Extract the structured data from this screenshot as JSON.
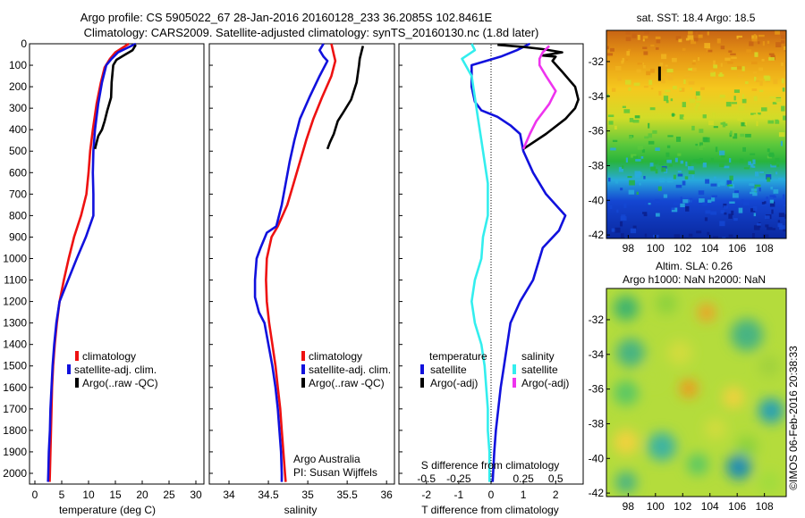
{
  "header": {
    "line1": "Argo profile: CS 5905022_67 28-Jan-2016 20160128_233 36.2085S 102.8461E",
    "line2": "Climatology: CARS2009. Satellite-adjusted climatology: synTS_20160130.nc (1.8d later)"
  },
  "footer_note": "©IMOS 06-Feb-2016 20:38:33",
  "colors": {
    "red": "#ee1111",
    "blue": "#1111dd",
    "black": "#000000",
    "cyan": "#33eeee",
    "magenta": "#ee33ee"
  },
  "chart_data": [
    {
      "id": "temperature",
      "type": "line",
      "xlabel": "temperature (deg C)",
      "ylabel": "",
      "xlim": [
        -1,
        31.5
      ],
      "ylim": [
        2050,
        0
      ],
      "xticks": [
        "0",
        "5",
        "10",
        "15",
        "20",
        "25",
        "30"
      ],
      "yticks": [
        "0",
        "100",
        "200",
        "300",
        "400",
        "500",
        "600",
        "700",
        "800",
        "900",
        "1000",
        "1100",
        "1200",
        "1300",
        "1400",
        "1500",
        "1600",
        "1700",
        "1800",
        "1900",
        "2000"
      ],
      "legend": [
        "climatology",
        "satellite-adj. clim.",
        "Argo(..raw -QC)"
      ],
      "series": [
        {
          "name": "climatology",
          "color": "red",
          "points": [
            [
              17.5,
              0
            ],
            [
              15,
              40
            ],
            [
              14,
              70
            ],
            [
              13,
              110
            ],
            [
              12.3,
              180
            ],
            [
              11.5,
              280
            ],
            [
              10.8,
              400
            ],
            [
              10.3,
              500
            ],
            [
              10,
              600
            ],
            [
              9.6,
              700
            ],
            [
              8.6,
              800
            ],
            [
              7.3,
              900
            ],
            [
              6.3,
              1000
            ],
            [
              5.4,
              1100
            ],
            [
              4.6,
              1200
            ],
            [
              4.1,
              1300
            ],
            [
              3.7,
              1400
            ],
            [
              3.4,
              1500
            ],
            [
              3.2,
              1600
            ],
            [
              3.1,
              1700
            ],
            [
              3,
              1800
            ],
            [
              2.9,
              1900
            ],
            [
              2.8,
              2000
            ],
            [
              2.75,
              2040
            ]
          ]
        },
        {
          "name": "satellite-adj. clim.",
          "color": "blue",
          "points": [
            [
              18.8,
              0
            ],
            [
              15.5,
              40
            ],
            [
              14.3,
              70
            ],
            [
              13.3,
              100
            ],
            [
              12.5,
              180
            ],
            [
              11.8,
              280
            ],
            [
              11.2,
              400
            ],
            [
              10.9,
              500
            ],
            [
              10.8,
              600
            ],
            [
              10.9,
              700
            ],
            [
              10.9,
              800
            ],
            [
              9.5,
              900
            ],
            [
              7.8,
              1000
            ],
            [
              6.2,
              1100
            ],
            [
              4.6,
              1200
            ],
            [
              4,
              1300
            ],
            [
              3.6,
              1400
            ],
            [
              3.3,
              1500
            ],
            [
              3.1,
              1600
            ],
            [
              2.9,
              1700
            ],
            [
              2.8,
              1800
            ],
            [
              2.6,
              1900
            ],
            [
              2.5,
              2000
            ],
            [
              2.45,
              2040
            ]
          ]
        },
        {
          "name": "Argo(..raw -QC)",
          "color": "black",
          "points": [
            [
              18.8,
              5
            ],
            [
              18.2,
              30
            ],
            [
              16.5,
              55
            ],
            [
              15.2,
              75
            ],
            [
              14.6,
              100
            ],
            [
              14.3,
              180
            ],
            [
              14.2,
              250
            ],
            [
              13.5,
              310
            ],
            [
              13,
              360
            ],
            [
              12.5,
              400
            ],
            [
              11.8,
              430
            ],
            [
              11.5,
              460
            ],
            [
              11.2,
              490
            ]
          ]
        }
      ]
    },
    {
      "id": "salinity",
      "type": "line",
      "xlabel": "salinity",
      "ylabel": "",
      "xlim": [
        33.75,
        36.1
      ],
      "ylim": [
        2050,
        0
      ],
      "xticks": [
        "34",
        "34.5",
        "35",
        "35.5",
        "36"
      ],
      "legend": [
        "climatology",
        "satellite-adj. clim.",
        "Argo(..raw -QC)"
      ],
      "annotation": [
        "Argo Australia",
        "PI: Susan Wijffels"
      ],
      "series": [
        {
          "name": "climatology",
          "color": "red",
          "points": [
            [
              35.3,
              0
            ],
            [
              35.33,
              50
            ],
            [
              35.35,
              80
            ],
            [
              35.3,
              150
            ],
            [
              35.18,
              250
            ],
            [
              35.07,
              350
            ],
            [
              34.98,
              450
            ],
            [
              34.9,
              550
            ],
            [
              34.82,
              650
            ],
            [
              34.74,
              750
            ],
            [
              34.62,
              850
            ],
            [
              34.54,
              900
            ],
            [
              34.48,
              1000
            ],
            [
              34.47,
              1100
            ],
            [
              34.48,
              1200
            ],
            [
              34.51,
              1300
            ],
            [
              34.55,
              1400
            ],
            [
              34.59,
              1500
            ],
            [
              34.62,
              1600
            ],
            [
              34.65,
              1700
            ],
            [
              34.67,
              1800
            ],
            [
              34.69,
              1900
            ],
            [
              34.71,
              2000
            ],
            [
              34.72,
              2040
            ]
          ]
        },
        {
          "name": "satellite-adj. clim.",
          "color": "blue",
          "points": [
            [
              35.2,
              0
            ],
            [
              35.15,
              30
            ],
            [
              35.2,
              60
            ],
            [
              35.25,
              80
            ],
            [
              35.15,
              150
            ],
            [
              35.02,
              250
            ],
            [
              34.9,
              350
            ],
            [
              34.83,
              450
            ],
            [
              34.77,
              550
            ],
            [
              34.72,
              650
            ],
            [
              34.67,
              750
            ],
            [
              34.6,
              850
            ],
            [
              34.48,
              880
            ],
            [
              34.4,
              950
            ],
            [
              34.35,
              1000
            ],
            [
              34.33,
              1100
            ],
            [
              34.33,
              1180
            ],
            [
              34.38,
              1250
            ],
            [
              34.45,
              1300
            ],
            [
              34.5,
              1400
            ],
            [
              34.55,
              1500
            ],
            [
              34.59,
              1600
            ],
            [
              34.62,
              1700
            ],
            [
              34.64,
              1800
            ],
            [
              34.66,
              1900
            ],
            [
              34.67,
              2000
            ],
            [
              34.67,
              2040
            ]
          ]
        },
        {
          "name": "Argo(..raw -QC)",
          "color": "black",
          "points": [
            [
              35.7,
              10
            ],
            [
              35.68,
              40
            ],
            [
              35.66,
              70
            ],
            [
              35.65,
              100
            ],
            [
              35.62,
              180
            ],
            [
              35.55,
              260
            ],
            [
              35.45,
              320
            ],
            [
              35.38,
              360
            ],
            [
              35.33,
              420
            ],
            [
              35.28,
              460
            ],
            [
              35.25,
              490
            ]
          ]
        }
      ]
    },
    {
      "id": "differences",
      "type": "line",
      "xlabel": "T difference from climatology",
      "title": "S difference from climatology",
      "xlim": [
        -2.85,
        2.85
      ],
      "ylim": [
        2050,
        0
      ],
      "xticks_bottom": [
        "-2",
        "-1",
        "0",
        "1",
        "2"
      ],
      "xticks_top": [
        "-0.5",
        "-0.25",
        "0",
        "0.25",
        "0.5"
      ],
      "legend_groups": [
        {
          "title": "temperature",
          "entries": [
            "satellite",
            "Argo(-adj)"
          ]
        },
        {
          "title": "salinity",
          "entries": [
            "satellite",
            "Argo(-adj)"
          ]
        }
      ],
      "series": [
        {
          "name": "temperature satellite",
          "color": "blue",
          "points": [
            [
              1.2,
              0
            ],
            [
              0.8,
              30
            ],
            [
              0.3,
              60
            ],
            [
              -0.6,
              100
            ],
            [
              -0.6,
              200
            ],
            [
              -0.5,
              270
            ],
            [
              -0.3,
              310
            ],
            [
              0.2,
              340
            ],
            [
              0.6,
              380
            ],
            [
              0.9,
              420
            ],
            [
              1.0,
              500
            ],
            [
              1.3,
              600
            ],
            [
              1.7,
              700
            ],
            [
              2.3,
              800
            ],
            [
              2.1,
              870
            ],
            [
              1.6,
              950
            ],
            [
              1.3,
              1100
            ],
            [
              0.9,
              1200
            ],
            [
              0.6,
              1300
            ],
            [
              0.4,
              1500
            ],
            [
              0.3,
              1600
            ],
            [
              0.15,
              1800
            ],
            [
              0.1,
              1900
            ],
            [
              0.05,
              2040
            ]
          ]
        },
        {
          "name": "temperature Argo(-adj)",
          "color": "black",
          "points": [
            [
              0.2,
              5
            ],
            [
              1.0,
              15
            ],
            [
              1.6,
              25
            ],
            [
              2.2,
              40
            ],
            [
              1.6,
              55
            ],
            [
              2.0,
              60
            ],
            [
              1.9,
              80
            ],
            [
              2.2,
              130
            ],
            [
              2.6,
              200
            ],
            [
              2.7,
              260
            ],
            [
              2.6,
              300
            ],
            [
              2.3,
              350
            ],
            [
              1.7,
              420
            ],
            [
              1.0,
              490
            ]
          ]
        },
        {
          "name": "salinity satellite",
          "color": "cyan",
          "points": [
            [
              -0.6,
              0
            ],
            [
              -0.5,
              30
            ],
            [
              -0.9,
              70
            ],
            [
              -0.6,
              150
            ],
            [
              -0.5,
              250
            ],
            [
              -0.4,
              350
            ],
            [
              -0.3,
              450
            ],
            [
              -0.2,
              550
            ],
            [
              -0.1,
              650
            ],
            [
              -0.1,
              800
            ],
            [
              -0.25,
              900
            ],
            [
              -0.3,
              1000
            ],
            [
              -0.5,
              1100
            ],
            [
              -0.6,
              1200
            ],
            [
              -0.5,
              1300
            ],
            [
              -0.3,
              1400
            ],
            [
              -0.2,
              1500
            ],
            [
              -0.15,
              1600
            ],
            [
              -0.1,
              1700
            ],
            [
              -0.1,
              1800
            ],
            [
              -0.05,
              1900
            ],
            [
              -0.05,
              2040
            ]
          ]
        },
        {
          "name": "salinity Argo(-adj)",
          "color": "magenta",
          "points": [
            [
              1.8,
              10
            ],
            [
              1.6,
              40
            ],
            [
              1.5,
              70
            ],
            [
              1.5,
              100
            ],
            [
              1.7,
              150
            ],
            [
              2.0,
              220
            ],
            [
              1.8,
              280
            ],
            [
              1.6,
              320
            ],
            [
              1.4,
              360
            ],
            [
              1.2,
              420
            ],
            [
              1.0,
              490
            ]
          ]
        }
      ]
    },
    {
      "id": "sst_map",
      "type": "heatmap",
      "title": "sat. SST: 18.4  Argo: 18.5",
      "xlim": [
        96.4,
        109.6
      ],
      "ylim": [
        -42.2,
        -30.2
      ],
      "xticks": [
        "98",
        "100",
        "102",
        "104",
        "106",
        "108"
      ],
      "yticks": [
        "-32",
        "-34",
        "-36",
        "-38",
        "-40",
        "-42"
      ],
      "marker": {
        "lon": 100.3,
        "lat": -32.7
      }
    },
    {
      "id": "sla_map",
      "type": "heatmap",
      "title_line1": "Altim. SLA: 0.26",
      "title_line2": "Argo h1000: NaN h2000: NaN",
      "xlim": [
        96.4,
        109.6
      ],
      "ylim": [
        -42.2,
        -30.2
      ],
      "xticks": [
        "98",
        "100",
        "102",
        "104",
        "106",
        "108"
      ],
      "yticks": [
        "-32",
        "-34",
        "-36",
        "-38",
        "-40",
        "-42"
      ]
    }
  ]
}
